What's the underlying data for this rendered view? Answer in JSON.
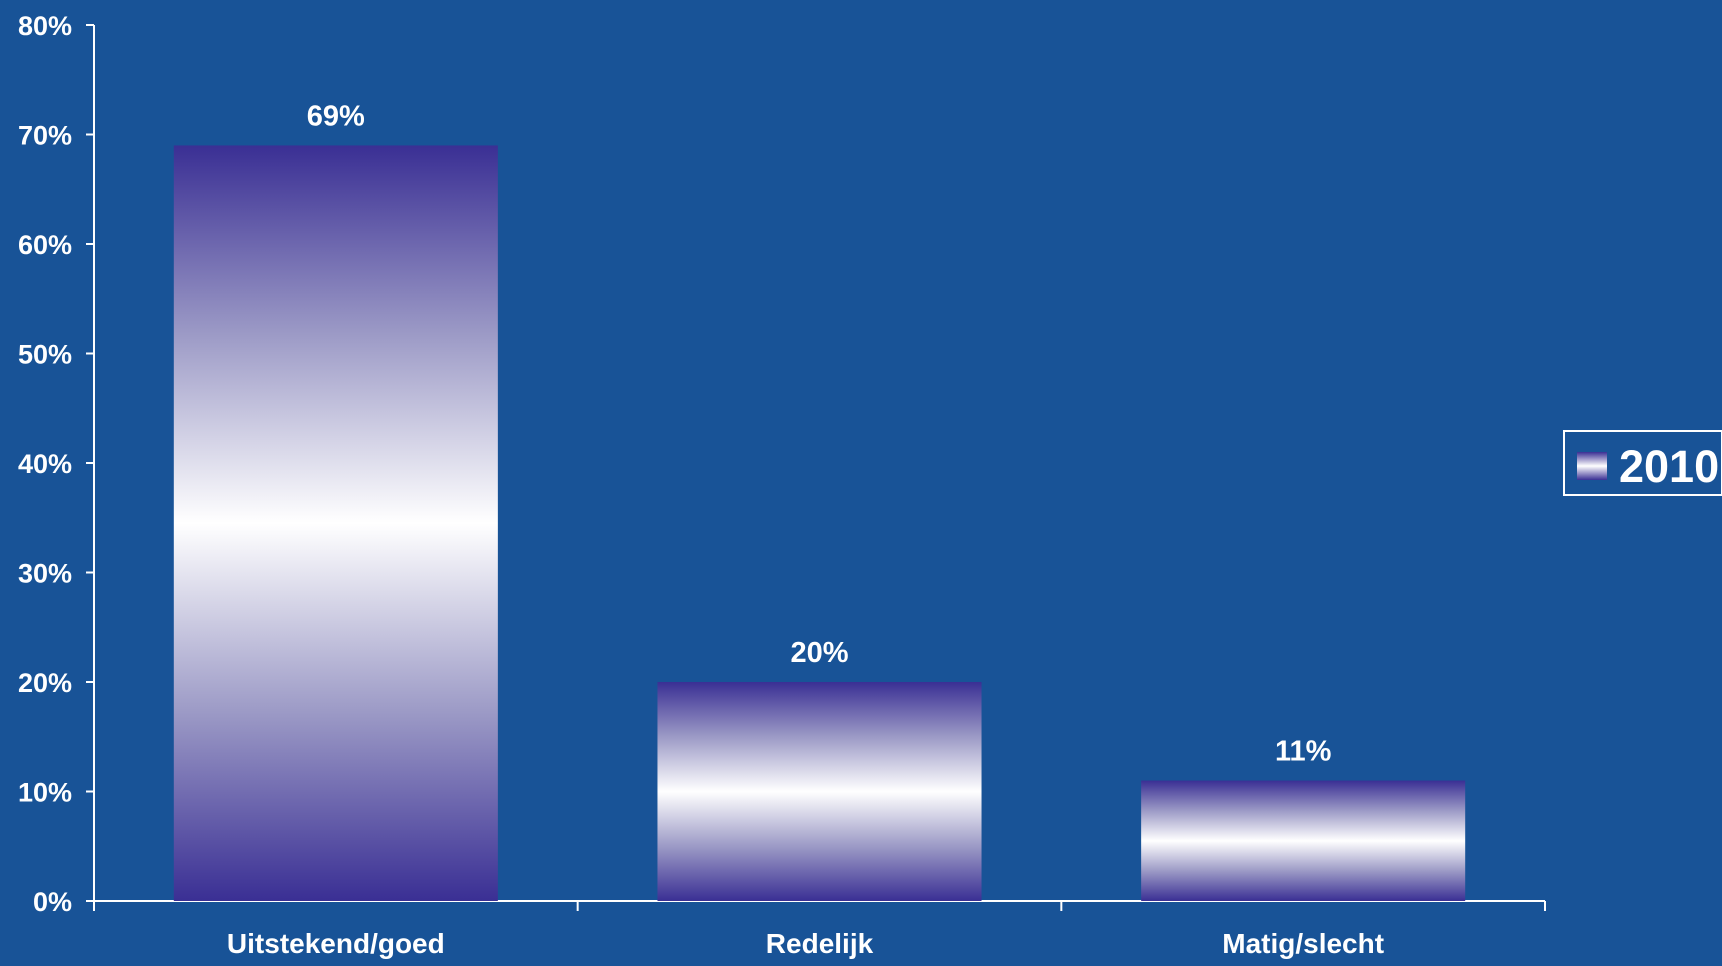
{
  "colors": {
    "background": "#185397",
    "axis": "#ffffff",
    "text": "#ffffff",
    "bar_edge": "#3a2f94",
    "bar_mid": "#ffffff"
  },
  "chart_data": {
    "type": "bar",
    "title": "",
    "xlabel": "",
    "ylabel": "",
    "categories": [
      "Uitstekend/goed",
      "Redelijk",
      "Matig/slecht"
    ],
    "series": [
      {
        "name": "2010",
        "values": [
          69,
          20,
          11
        ]
      }
    ],
    "data_labels": [
      "69%",
      "20%",
      "11%"
    ],
    "y_ticks": [
      "0%",
      "10%",
      "20%",
      "30%",
      "40%",
      "50%",
      "60%",
      "70%",
      "80%"
    ],
    "ylim": [
      0,
      80
    ],
    "grid": false,
    "legend_position": "right"
  }
}
